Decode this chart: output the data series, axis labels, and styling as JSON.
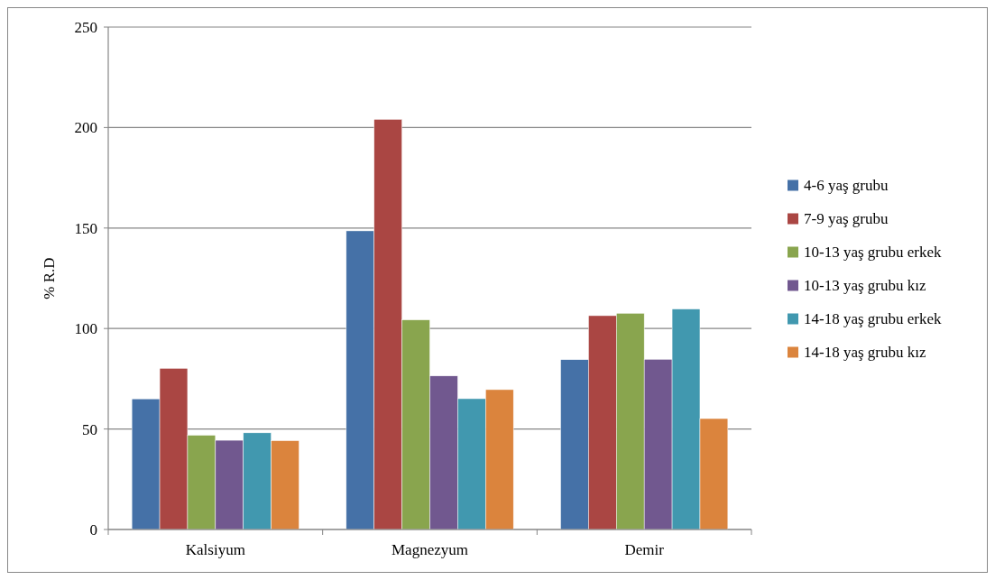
{
  "chart_data": {
    "type": "bar",
    "ylabel": "% R.D",
    "categories": [
      "Kalsiyum",
      "Magnezyum",
      "Demir"
    ],
    "series": [
      {
        "name": "4-6 yaş grubu",
        "color": "#4571a7",
        "values": [
          65,
          148.6,
          84.5
        ]
      },
      {
        "name": "7-9 yaş grubu",
        "color": "#aa4643",
        "values": [
          80.2,
          204.1,
          106.4
        ]
      },
      {
        "name": "10-13 yaş grubu erkek",
        "color": "#89a54e",
        "values": [
          46.9,
          104.3,
          107.6
        ]
      },
      {
        "name": "10-13 yaş grubu kız",
        "color": "#71588f",
        "values": [
          44.4,
          76.4,
          84.7
        ]
      },
      {
        "name": "14-18 yaş grubu erkek",
        "color": "#4198af",
        "values": [
          48.1,
          65.1,
          109.7
        ]
      },
      {
        "name": "14-18 yaş grubu kız",
        "color": "#db843d",
        "values": [
          44.2,
          69.6,
          55.2
        ]
      }
    ],
    "ylim": [
      0,
      250
    ],
    "yticks": [
      0,
      50,
      100,
      150,
      200,
      250
    ],
    "grid": "y",
    "legend": "right"
  }
}
